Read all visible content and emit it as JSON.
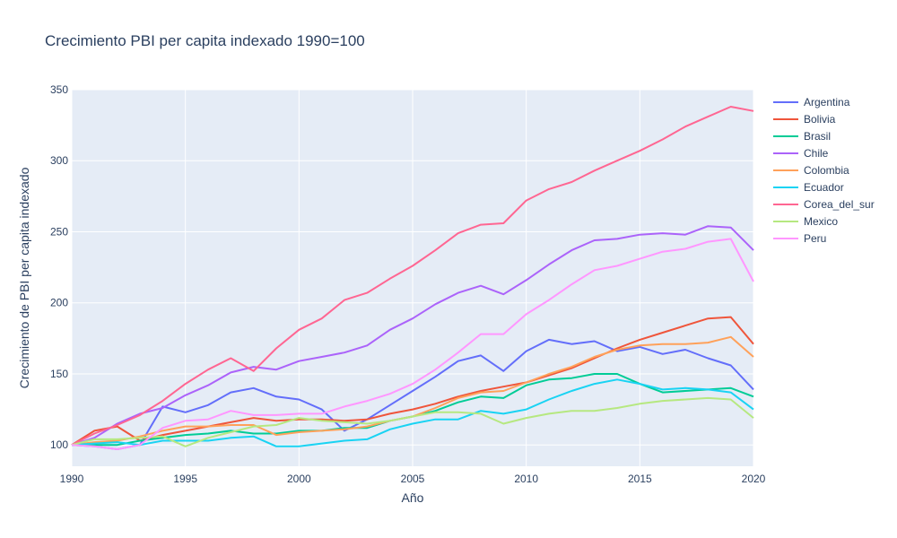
{
  "chart_data": {
    "type": "line",
    "title": "Crecimiento PBI per capita indexado 1990=100",
    "xlabel": "Año",
    "ylabel": "Crecimiento de PBI per capita indexado",
    "xlim": [
      1990,
      2020
    ],
    "ylim": [
      85,
      350
    ],
    "x_ticks": [
      1990,
      1995,
      2000,
      2005,
      2010,
      2015,
      2020
    ],
    "y_ticks": [
      100,
      150,
      200,
      250,
      300,
      350
    ],
    "grid": true,
    "legend_position": "right",
    "plot_background": "#e5ecf6",
    "x": [
      1990,
      1991,
      1992,
      1993,
      1994,
      1995,
      1996,
      1997,
      1998,
      1999,
      2000,
      2001,
      2002,
      2003,
      2004,
      2005,
      2006,
      2007,
      2008,
      2009,
      2010,
      2011,
      2012,
      2013,
      2014,
      2015,
      2016,
      2017,
      2018,
      2019,
      2020
    ],
    "series": [
      {
        "name": "Argentina",
        "color": "#636efa",
        "values": [
          100,
          99,
          97,
          100,
          127,
          123,
          128,
          137,
          140,
          134,
          132,
          125,
          110,
          118,
          128,
          138,
          148,
          159,
          163,
          152,
          166,
          174,
          171,
          173,
          166,
          169,
          164,
          167,
          161,
          156,
          139
        ]
      },
      {
        "name": "Bolivia",
        "color": "#ef553b",
        "values": [
          100,
          110,
          113,
          103,
          107,
          110,
          113,
          116,
          119,
          117,
          118,
          118,
          117,
          118,
          122,
          125,
          129,
          134,
          138,
          141,
          144,
          149,
          154,
          161,
          168,
          174,
          179,
          184,
          189,
          190,
          171
        ]
      },
      {
        "name": "Brasil",
        "color": "#00cc96",
        "values": [
          100,
          100,
          100,
          103,
          105,
          107,
          108,
          110,
          108,
          108,
          110,
          110,
          112,
          112,
          117,
          120,
          124,
          130,
          134,
          133,
          142,
          146,
          147,
          150,
          150,
          143,
          137,
          138,
          139,
          140,
          134
        ]
      },
      {
        "name": "Chile",
        "color": "#ab63fa",
        "values": [
          100,
          105,
          115,
          122,
          126,
          135,
          142,
          151,
          155,
          153,
          159,
          162,
          165,
          170,
          181,
          189,
          199,
          207,
          212,
          206,
          216,
          227,
          237,
          244,
          245,
          248,
          249,
          248,
          254,
          253,
          237
        ]
      },
      {
        "name": "Colombia",
        "color": "#ffa15a",
        "values": [
          100,
          102,
          103,
          106,
          110,
          113,
          113,
          114,
          114,
          107,
          109,
          110,
          111,
          113,
          117,
          120,
          126,
          133,
          137,
          138,
          144,
          150,
          155,
          162,
          167,
          170,
          171,
          171,
          172,
          176,
          162
        ]
      },
      {
        "name": "Ecuador",
        "color": "#19d3f3",
        "values": [
          100,
          101,
          102,
          100,
          103,
          103,
          103,
          105,
          106,
          99,
          99,
          101,
          103,
          104,
          111,
          115,
          118,
          118,
          124,
          122,
          125,
          132,
          138,
          143,
          146,
          143,
          139,
          140,
          139,
          137,
          125
        ]
      },
      {
        "name": "Corea_del_sur",
        "color": "#ff6692",
        "values": [
          100,
          108,
          114,
          121,
          131,
          143,
          153,
          161,
          152,
          168,
          181,
          189,
          202,
          207,
          217,
          226,
          237,
          249,
          255,
          256,
          272,
          280,
          285,
          293,
          300,
          307,
          315,
          324,
          331,
          338,
          335
        ]
      },
      {
        "name": "Mexico",
        "color": "#b6e880",
        "values": [
          100,
          104,
          104,
          105,
          106,
          99,
          105,
          109,
          113,
          114,
          119,
          117,
          116,
          115,
          117,
          120,
          123,
          123,
          122,
          115,
          119,
          122,
          124,
          124,
          126,
          129,
          131,
          132,
          133,
          132,
          119
        ]
      },
      {
        "name": "Peru",
        "color": "#ff97ff",
        "values": [
          100,
          99,
          97,
          100,
          112,
          117,
          118,
          124,
          121,
          121,
          122,
          122,
          127,
          131,
          136,
          143,
          153,
          165,
          178,
          178,
          192,
          202,
          213,
          223,
          226,
          231,
          236,
          238,
          243,
          245,
          215
        ]
      }
    ]
  }
}
